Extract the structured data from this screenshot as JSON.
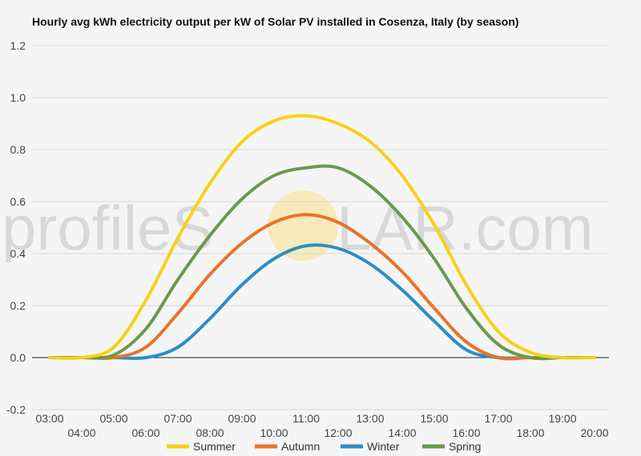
{
  "chart_data": {
    "type": "line",
    "title": "Hourly avg kWh electricity output per kW of Solar PV installed in Cosenza, Italy (by season)",
    "xlabel": "",
    "ylabel": "",
    "x": [
      "03:00",
      "04:00",
      "05:00",
      "06:00",
      "07:00",
      "08:00",
      "09:00",
      "10:00",
      "11:00",
      "12:00",
      "13:00",
      "14:00",
      "15:00",
      "16:00",
      "17:00",
      "18:00",
      "19:00",
      "20:00"
    ],
    "ylim": [
      -0.2,
      1.2
    ],
    "yticks": [
      "1.2",
      "1.0",
      "0.8",
      "0.6",
      "0.4",
      "0.2",
      "0.0",
      "-0.2"
    ],
    "ytick_values": [
      1.2,
      1.0,
      0.8,
      0.6,
      0.4,
      0.2,
      0.0,
      -0.2
    ],
    "grid": true,
    "legend_position": "bottom",
    "series": [
      {
        "name": "Summer",
        "color": "#f7d117",
        "values": [
          0.0,
          0.0,
          0.04,
          0.22,
          0.46,
          0.67,
          0.83,
          0.91,
          0.93,
          0.9,
          0.83,
          0.7,
          0.51,
          0.28,
          0.1,
          0.02,
          0.0,
          0.0
        ]
      },
      {
        "name": "Autumn",
        "color": "#e8742a",
        "values": [
          0.0,
          0.0,
          0.0,
          0.04,
          0.17,
          0.32,
          0.44,
          0.52,
          0.55,
          0.52,
          0.44,
          0.33,
          0.19,
          0.06,
          0.0,
          0.0,
          0.0,
          0.0
        ]
      },
      {
        "name": "Winter",
        "color": "#2a8ec7",
        "values": [
          0.0,
          0.0,
          0.0,
          0.0,
          0.04,
          0.15,
          0.28,
          0.38,
          0.43,
          0.42,
          0.36,
          0.26,
          0.14,
          0.03,
          0.0,
          0.0,
          0.0,
          0.0
        ]
      },
      {
        "name": "Spring",
        "color": "#6a9a4c",
        "values": [
          0.0,
          0.0,
          0.01,
          0.11,
          0.3,
          0.47,
          0.61,
          0.7,
          0.73,
          0.73,
          0.66,
          0.54,
          0.38,
          0.19,
          0.05,
          0.0,
          0.0,
          0.0
        ]
      }
    ]
  },
  "watermark": {
    "text_left": "profileS",
    "text_right": "LAR.com",
    "sun_color": "#f7e08a"
  }
}
